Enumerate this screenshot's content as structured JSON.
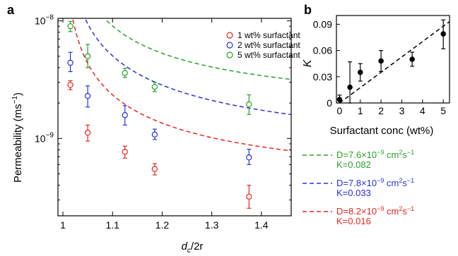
{
  "panels": [
    {
      "letter": "a",
      "chart_data": {
        "type": "scatter",
        "xlabel": "d_c/2r",
        "xlabel_main": "d",
        "xlabel_sub": "c",
        "xlabel_rest": "/2r",
        "ylabel": "Permeability (ms⁻¹)",
        "ylabel_text": "Permeability (ms",
        "ylabel_sup": "−1",
        "ylabel_close": ")",
        "xlim": [
          0.99,
          1.46
        ],
        "ylim": [
          2.2e-10,
          1.05e-08
        ],
        "yscale": "log",
        "xticks": [
          1,
          1.1,
          1.2,
          1.3,
          1.4
        ],
        "xtick_labels": [
          "1",
          "1.1",
          "1.2",
          "1.3",
          "1.4"
        ],
        "ytick_labels": [
          {
            "value": 1e-08,
            "base": "10",
            "exp": "−8"
          },
          {
            "value": 1e-09,
            "base": "10",
            "exp": "−9"
          }
        ],
        "legend_position": "top-right",
        "series": [
          {
            "name": "1 wt% surfactant",
            "color": "#e8251f",
            "x": [
              1.015,
              1.05,
              1.125,
              1.185,
              1.375
            ],
            "y": [
              2.85e-09,
              1.12e-09,
              7.7e-10,
              5.5e-10,
              3.2e-10
            ],
            "err_low": [
              2.6e-09,
              9.5e-10,
              6.8e-10,
              4.9e-10,
              2.55e-10
            ],
            "err_high": [
              3.1e-09,
              1.3e-09,
              8.6e-10,
              6.1e-10,
              4e-10
            ],
            "fit_label": "D=8.2×10⁻⁹ cm²s⁻¹",
            "fit_label_d": "D=8.2×10",
            "fit_label_exp": "−9",
            "fit_label_unit": " cm",
            "fit_label_sq": "2",
            "fit_label_s": "s",
            "fit_label_m1": "−1",
            "k_label": "K=0.016",
            "fit": {
              "A": 3.5e-10,
              "B": 2e-10
            }
          },
          {
            "name": "2 wt% surfactant",
            "color": "#2630e0",
            "x": [
              1.015,
              1.05,
              1.125,
              1.185,
              1.375
            ],
            "y": [
              4.4e-09,
              2.3e-09,
              1.58e-09,
              1.08e-09,
              6.9e-10
            ],
            "err_low": [
              3.7e-09,
              1.85e-09,
              1.3e-09,
              9.8e-10,
              6e-10
            ],
            "err_high": [
              5.4e-09,
              2.8e-09,
              1.9e-09,
              1.2e-09,
              8.1e-10
            ],
            "fit_label": "D=7.8×10⁻⁹ cm²s⁻¹",
            "fit_label_d": "D=7.8×10",
            "fit_label_exp": "−9",
            "fit_label_unit": " cm",
            "fit_label_sq": "2",
            "fit_label_s": "s",
            "fit_label_m1": "−1",
            "k_label": "K=0.033",
            "fit": {
              "A": 6.4e-10,
              "B": 4.4e-10
            }
          },
          {
            "name": "5 wt% surfactant",
            "color": "#27a128",
            "x": [
              1.015,
              1.05,
              1.125,
              1.185,
              1.375
            ],
            "y": [
              9e-09,
              5e-09,
              3.6e-09,
              2.75e-09,
              1.95e-09
            ],
            "err_low": [
              8.1e-09,
              4e-09,
              3.3e-09,
              2.5e-09,
              1.6e-09
            ],
            "err_high": [
              9.9e-09,
              6.3e-09,
              3.95e-09,
              3e-09,
              2.35e-09
            ],
            "fit_label": "D=7.6×10⁻⁹ cm²s⁻¹",
            "fit_label_d": "D=7.6×10",
            "fit_label_exp": "−9",
            "fit_label_unit": " cm",
            "fit_label_sq": "2",
            "fit_label_s": "s",
            "fit_label_m1": "−1",
            "k_label": "K=0.082",
            "fit": {
              "A": 1.55e-09,
              "B": 7.5e-10
            }
          }
        ]
      }
    },
    {
      "letter": "b",
      "chart_data": {
        "type": "scatter",
        "xlabel": "Surfactant conc (wt%)",
        "ylabel": "K",
        "xlim": [
          -0.15,
          5.3
        ],
        "ylim": [
          0,
          0.1
        ],
        "xticks": [
          0,
          1,
          2,
          3,
          4,
          5
        ],
        "xtick_labels": [
          "0",
          "1",
          "2",
          "3",
          "4",
          "5"
        ],
        "yticks": [
          0,
          0.03,
          0.06,
          0.09
        ],
        "ytick_labels": [
          "0",
          "0.03",
          "0.06",
          "0.09"
        ],
        "color": "#000000",
        "x": [
          0,
          0.5,
          1,
          2,
          3.5,
          5
        ],
        "y": [
          0.004,
          0.018,
          0.035,
          0.048,
          0.05,
          0.079
        ],
        "err_low": [
          0.0,
          0.0,
          0.025,
          0.036,
          0.042,
          0.062
        ],
        "err_high": [
          0.009,
          0.047,
          0.045,
          0.06,
          0.058,
          0.095
        ],
        "fit_line": {
          "x": [
            0,
            5.3
          ],
          "y": [
            0.0,
            0.093
          ]
        }
      }
    }
  ]
}
